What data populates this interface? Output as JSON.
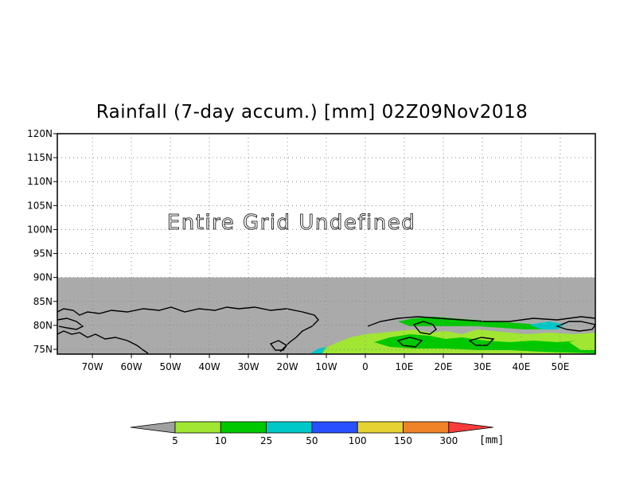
{
  "title": "Rainfall (7-day accum.) [mm] 02Z09Nov2018",
  "annotation": "Entire Grid Undefined",
  "lat_labels": [
    "120N",
    "115N",
    "110N",
    "105N",
    "100N",
    "95N",
    "90N",
    "85N",
    "80N",
    "75N"
  ],
  "lon_labels": [
    "70W",
    "60W",
    "50W",
    "40W",
    "30W",
    "20W",
    "10W",
    "0",
    "10E",
    "20E",
    "30E",
    "40E",
    "50E"
  ],
  "map": {
    "lon_range": [
      -79,
      59
    ],
    "lat_range": [
      74,
      120
    ],
    "undefined_region_top_lat": 90,
    "grid": "dotted",
    "colors": {
      "undefined": "#aaaaaa",
      "coastline": "#000000"
    }
  },
  "colorbar": {
    "unit_label": "[mm]",
    "bin_colors": [
      "#a0a0a0",
      "#a0e632",
      "#00c800",
      "#00c8c8",
      "#2850ff",
      "#e6d232",
      "#f08228",
      "#fa3c3c"
    ],
    "bin_labels": [
      "5",
      "10",
      "25",
      "50",
      "100",
      "150",
      "300"
    ]
  }
}
